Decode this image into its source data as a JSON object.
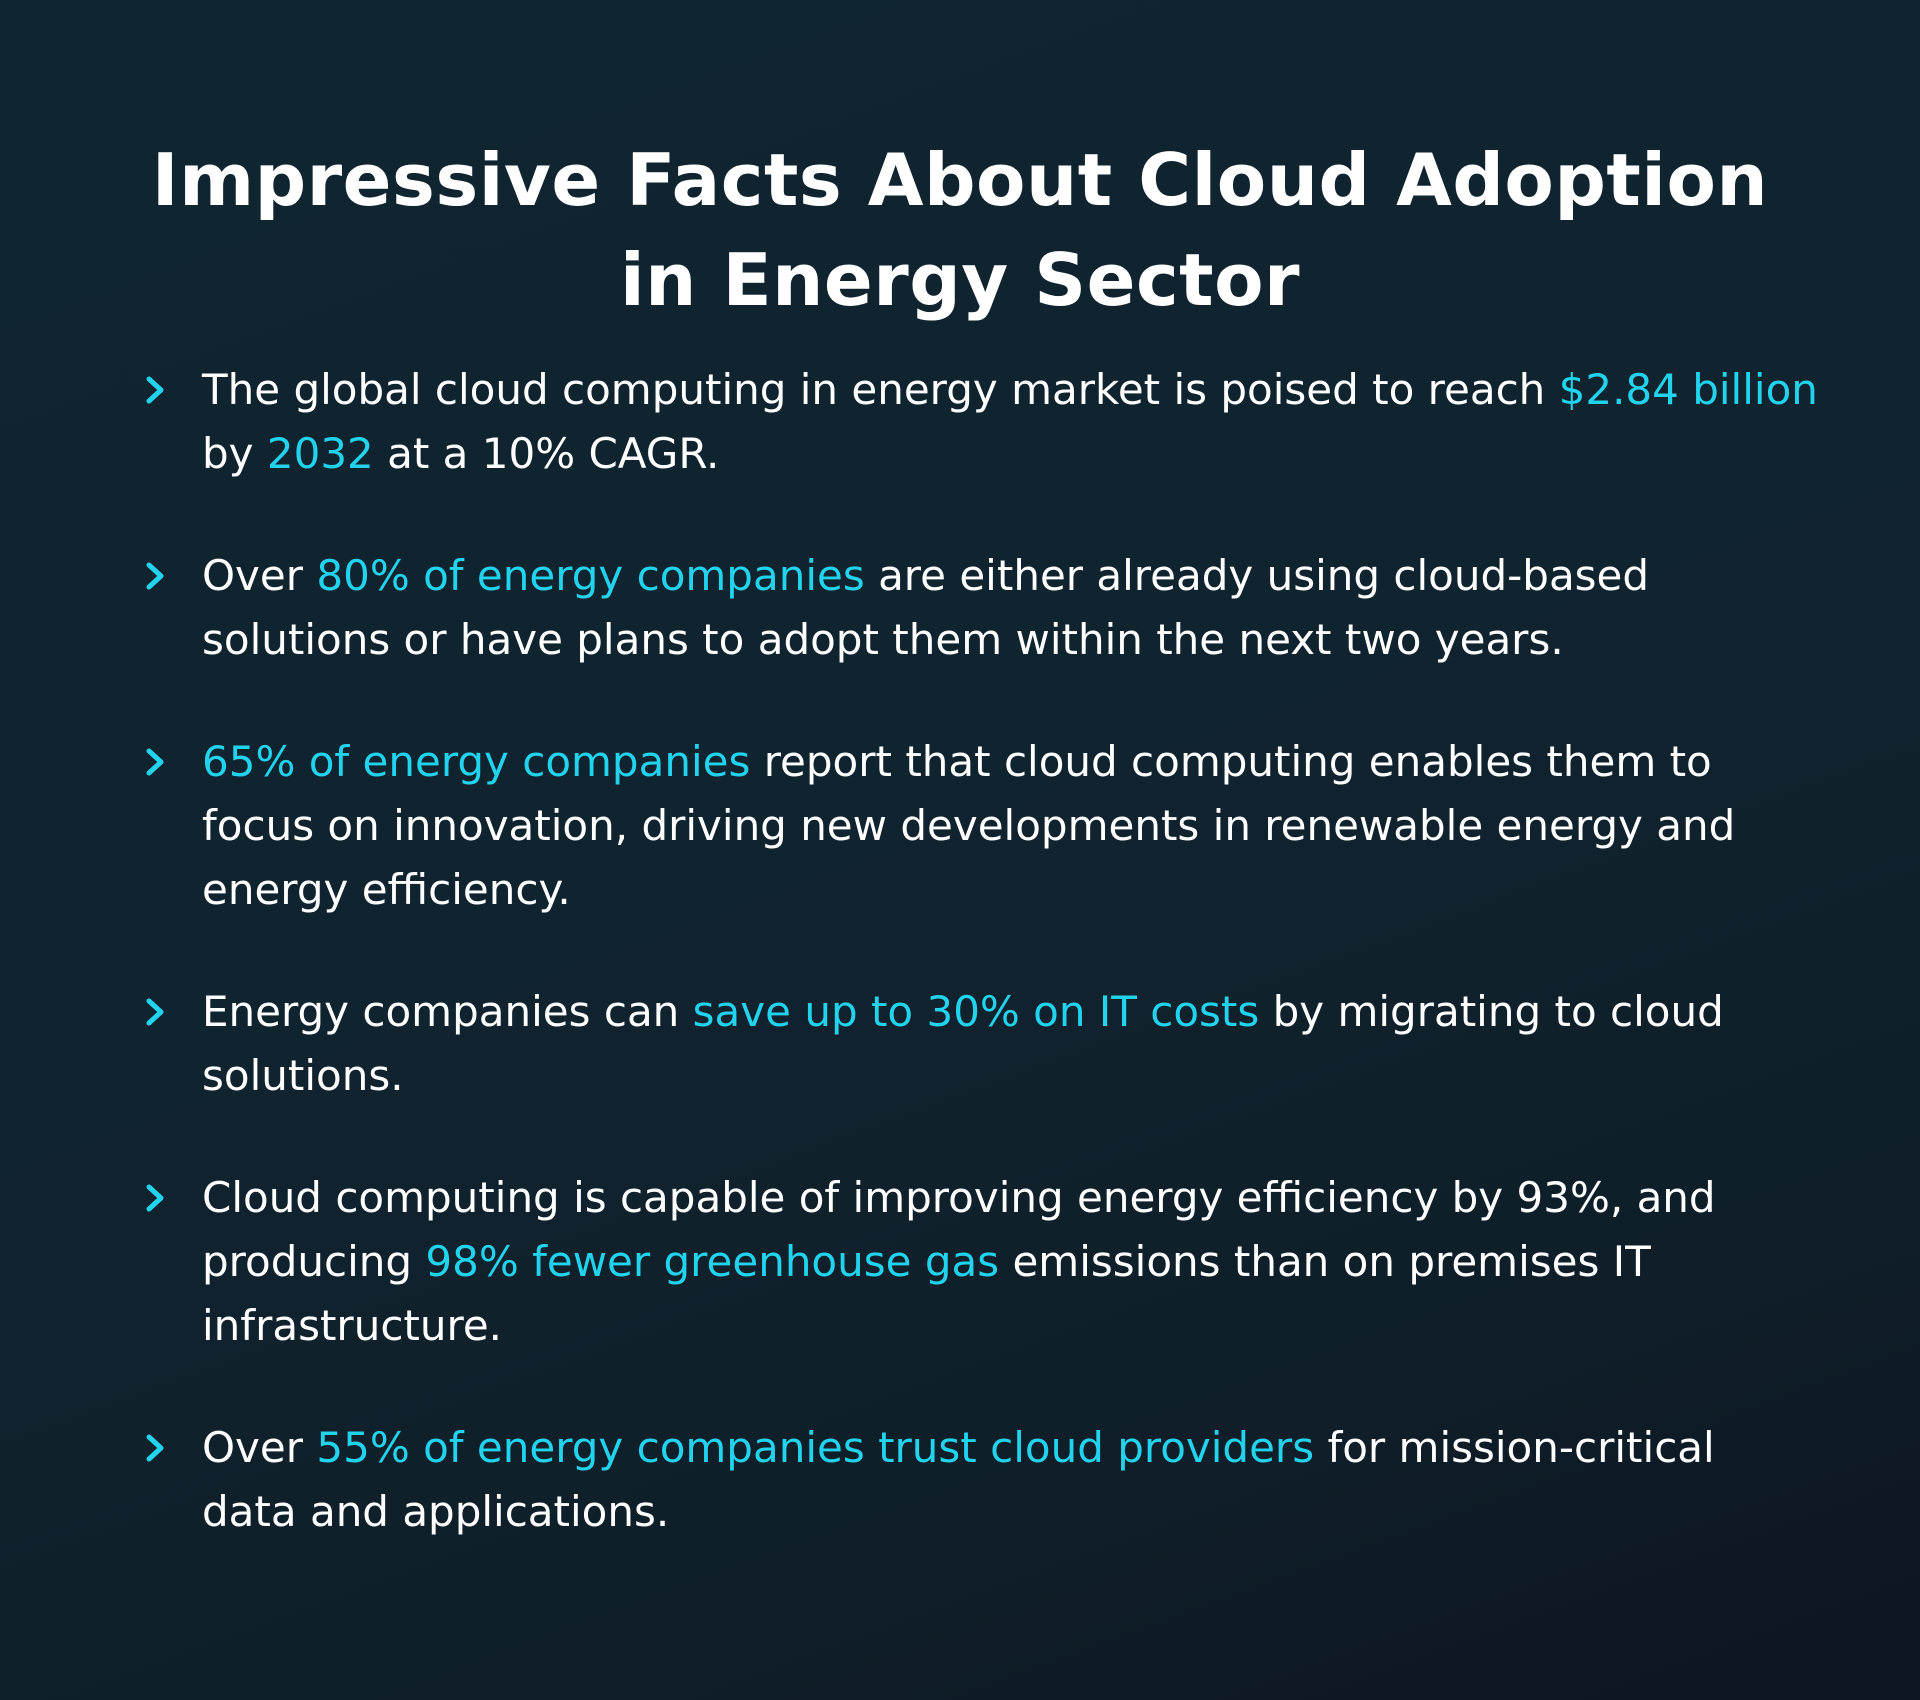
{
  "title": {
    "line1": "Impressive Facts About Cloud Adoption",
    "line2": "in Energy Sector"
  },
  "colors": {
    "accent": "#22d3ee",
    "background": "#0f2530",
    "text": "#ffffff"
  },
  "icons": {
    "bullet": "chevron-right-icon"
  },
  "facts": [
    {
      "t1": "The global cloud computing in energy market is poised to reach ",
      "h1": "$2.84 billion",
      "t2": " by ",
      "h2": "2032",
      "t3": " at a 10% CAGR."
    },
    {
      "t1": "Over ",
      "h1": "80% of energy companies",
      "t2": " are either already using cloud-based solutions or have plans to adopt them within the next two years."
    },
    {
      "h1": "65% of energy companies",
      "t1": " report that cloud computing enables them to focus on innovation, driving new developments in renewable energy and energy efficiency."
    },
    {
      "t1": "Energy companies can ",
      "h1": "save up to 30% on IT costs",
      "t2": " by migrating to cloud solutions."
    },
    {
      "t1": "Cloud computing is capable of improving energy efficiency by 93%, and producing ",
      "h1": "98% fewer greenhouse gas",
      "t2": " emissions than on premises IT infrastructure."
    },
    {
      "t1": "Over ",
      "h1": "55% of energy companies trust cloud providers",
      "t2": " for mission-critical data and applications."
    }
  ]
}
